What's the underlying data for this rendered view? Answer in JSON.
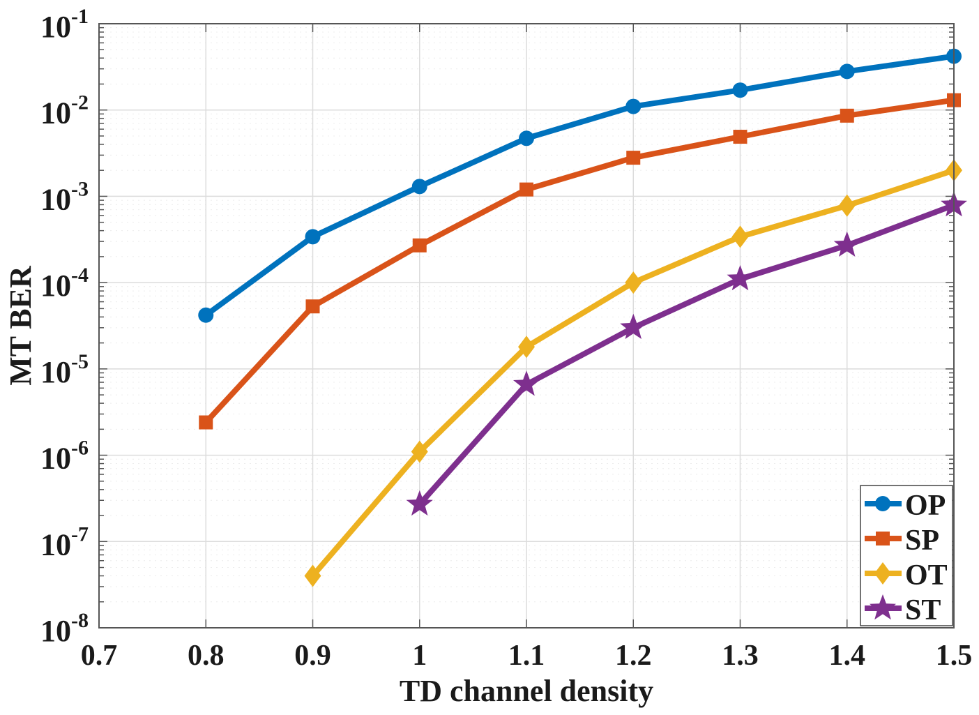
{
  "chart_data": {
    "type": "line",
    "title": "",
    "xlabel": "TD channel density",
    "ylabel": "MT BER",
    "xlim": [
      0.7,
      1.5
    ],
    "ylim": [
      1e-08,
      0.1
    ],
    "yscale": "log",
    "grid": true,
    "x_ticks": [
      "0.7",
      "0.8",
      "0.9",
      "1",
      "1.1",
      "1.2",
      "1.3",
      "1.4",
      "1.5"
    ],
    "x_tick_values": [
      0.7,
      0.8,
      0.9,
      1.0,
      1.1,
      1.2,
      1.3,
      1.4,
      1.5
    ],
    "y_ticks": [
      {
        "base": "10",
        "exp": "-1",
        "value": 0.1
      },
      {
        "base": "10",
        "exp": "-2",
        "value": 0.01
      },
      {
        "base": "10",
        "exp": "-3",
        "value": 0.001
      },
      {
        "base": "10",
        "exp": "-4",
        "value": 0.0001
      },
      {
        "base": "10",
        "exp": "-5",
        "value": 1e-05
      },
      {
        "base": "10",
        "exp": "-6",
        "value": 1e-06
      },
      {
        "base": "10",
        "exp": "-7",
        "value": 1e-07
      },
      {
        "base": "10",
        "exp": "-8",
        "value": 1e-08
      }
    ],
    "legend_position": "bottom-right",
    "series": [
      {
        "name": "OP",
        "color": "#0072BD",
        "marker": "circle",
        "x": [
          0.8,
          0.9,
          1.0,
          1.1,
          1.2,
          1.3,
          1.4,
          1.5
        ],
        "values": [
          4.2e-05,
          0.00034,
          0.0013,
          0.0047,
          0.011,
          0.017,
          0.028,
          0.042
        ]
      },
      {
        "name": "SP",
        "color": "#D95319",
        "marker": "square",
        "x": [
          0.8,
          0.9,
          1.0,
          1.1,
          1.2,
          1.3,
          1.4,
          1.5
        ],
        "values": [
          2.4e-06,
          5.3e-05,
          0.00027,
          0.0012,
          0.0028,
          0.0049,
          0.0086,
          0.013
        ]
      },
      {
        "name": "OT",
        "color": "#EDB120",
        "marker": "diamond",
        "x": [
          0.9,
          1.0,
          1.1,
          1.2,
          1.3,
          1.4,
          1.5
        ],
        "values": [
          4e-08,
          1.1e-06,
          1.8e-05,
          0.0001,
          0.00034,
          0.00078,
          0.002
        ]
      },
      {
        "name": "ST",
        "color": "#7E2F8E",
        "marker": "star",
        "x": [
          1.0,
          1.1,
          1.2,
          1.3,
          1.4,
          1.5
        ],
        "values": [
          2.7e-07,
          6.6e-06,
          3e-05,
          0.00011,
          0.00027,
          0.00079
        ]
      }
    ]
  }
}
